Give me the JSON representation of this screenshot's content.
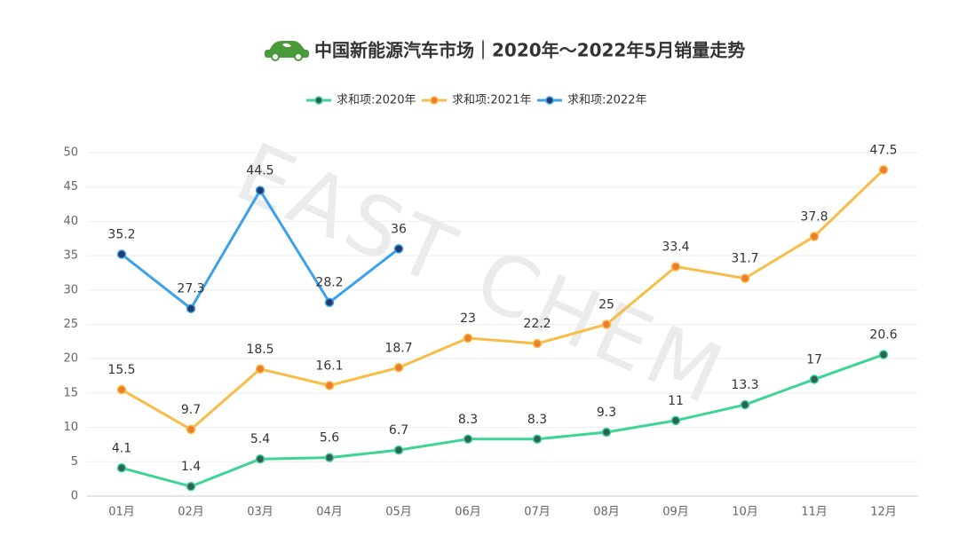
{
  "chart_data": {
    "type": "line",
    "title": "中国新能源汽车市场｜2020年～2022年5月销量走势",
    "watermark": "EAST CHEM",
    "categories": [
      "01月",
      "02月",
      "03月",
      "04月",
      "05月",
      "06月",
      "07月",
      "08月",
      "09月",
      "10月",
      "11月",
      "12月"
    ],
    "series": [
      {
        "name": "求和项:2020年",
        "color": "#3ed494",
        "marker_color": "#2f5f5a",
        "values": [
          4.1,
          1.4,
          5.4,
          5.6,
          6.7,
          8.3,
          8.3,
          9.3,
          11,
          13.3,
          17,
          20.6
        ]
      },
      {
        "name": "求和项:2021年",
        "color": "#f8bd48",
        "marker_color": "#ec7c2e",
        "values": [
          15.5,
          9.7,
          18.5,
          16.1,
          18.7,
          23,
          22.2,
          25,
          33.4,
          31.7,
          37.8,
          47.5
        ]
      },
      {
        "name": "求和项:2022年",
        "color": "#3aa2ea",
        "marker_color": "#253a6a",
        "values": [
          35.2,
          27.3,
          44.5,
          28.2,
          36,
          null,
          null,
          null,
          null,
          null,
          null,
          null
        ]
      }
    ],
    "ylim": [
      0,
      50
    ],
    "yticks": [
      0,
      5,
      10,
      15,
      20,
      25,
      30,
      35,
      40,
      45,
      50
    ],
    "grid": true,
    "legend": "top"
  }
}
